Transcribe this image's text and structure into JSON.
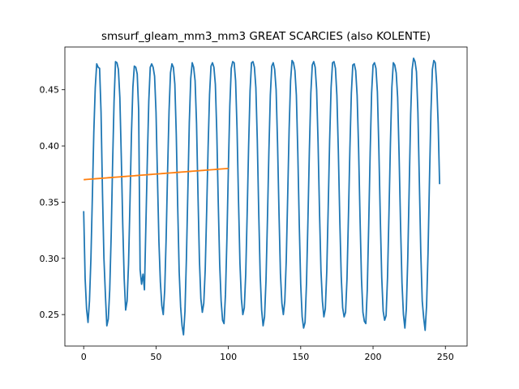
{
  "chart_data": {
    "type": "line",
    "title": "smsurf_gleam_mm3_mm3 GREAT SCARCIES (also KOLENTE)",
    "xlabel": "",
    "ylabel": "",
    "xlim": [
      -13,
      265
    ],
    "ylim": [
      0.222,
      0.488
    ],
    "grid": false,
    "xticks": [
      0,
      50,
      100,
      150,
      200,
      250
    ],
    "yticks": [
      0.25,
      0.3,
      0.35,
      0.4,
      0.45
    ],
    "ytick_labels": [
      "0.25",
      "0.30",
      "0.35",
      "0.40",
      "0.45"
    ],
    "series": [
      {
        "color": "#1f77b4",
        "values": [
          0.342,
          0.282,
          0.255,
          0.243,
          0.262,
          0.3,
          0.355,
          0.412,
          0.452,
          0.473,
          0.47,
          0.469,
          0.43,
          0.358,
          0.3,
          0.268,
          0.24,
          0.246,
          0.272,
          0.32,
          0.385,
          0.44,
          0.475,
          0.474,
          0.468,
          0.443,
          0.39,
          0.33,
          0.282,
          0.254,
          0.262,
          0.295,
          0.35,
          0.41,
          0.452,
          0.471,
          0.47,
          0.464,
          0.432,
          0.29,
          0.277,
          0.286,
          0.272,
          0.33,
          0.388,
          0.44,
          0.47,
          0.473,
          0.47,
          0.462,
          0.43,
          0.371,
          0.315,
          0.279,
          0.258,
          0.25,
          0.272,
          0.318,
          0.378,
          0.431,
          0.465,
          0.473,
          0.47,
          0.455,
          0.41,
          0.345,
          0.288,
          0.257,
          0.24,
          0.232,
          0.253,
          0.3,
          0.36,
          0.421,
          0.46,
          0.474,
          0.47,
          0.458,
          0.42,
          0.357,
          0.298,
          0.264,
          0.252,
          0.26,
          0.29,
          0.342,
          0.399,
          0.446,
          0.471,
          0.474,
          0.47,
          0.455,
          0.412,
          0.35,
          0.295,
          0.262,
          0.245,
          0.242,
          0.268,
          0.318,
          0.38,
          0.436,
          0.469,
          0.475,
          0.474,
          0.458,
          0.415,
          0.352,
          0.296,
          0.264,
          0.25,
          0.256,
          0.286,
          0.34,
          0.4,
          0.449,
          0.474,
          0.475,
          0.47,
          0.452,
          0.405,
          0.34,
          0.285,
          0.254,
          0.24,
          0.248,
          0.28,
          0.334,
          0.395,
          0.445,
          0.471,
          0.474,
          0.468,
          0.45,
          0.402,
          0.34,
          0.286,
          0.26,
          0.25,
          0.262,
          0.298,
          0.355,
          0.415,
          0.458,
          0.476,
          0.474,
          0.467,
          0.445,
          0.394,
          0.33,
          0.277,
          0.248,
          0.238,
          0.243,
          0.278,
          0.334,
          0.397,
          0.447,
          0.472,
          0.475,
          0.47,
          0.45,
          0.403,
          0.341,
          0.289,
          0.262,
          0.248,
          0.255,
          0.288,
          0.345,
          0.405,
          0.452,
          0.474,
          0.475,
          0.469,
          0.445,
          0.396,
          0.335,
          0.284,
          0.256,
          0.248,
          0.252,
          0.282,
          0.338,
          0.398,
          0.447,
          0.472,
          0.473,
          0.467,
          0.445,
          0.398,
          0.336,
          0.282,
          0.252,
          0.244,
          0.242,
          0.272,
          0.33,
          0.394,
          0.447,
          0.472,
          0.474,
          0.469,
          0.448,
          0.398,
          0.336,
          0.283,
          0.253,
          0.245,
          0.249,
          0.283,
          0.34,
          0.402,
          0.452,
          0.474,
          0.472,
          0.465,
          0.443,
          0.392,
          0.33,
          0.278,
          0.25,
          0.238,
          0.255,
          0.3,
          0.364,
          0.428,
          0.468,
          0.478,
          0.475,
          0.466,
          0.43,
          0.368,
          0.305,
          0.262,
          0.247,
          0.236,
          0.258,
          0.305,
          0.37,
          0.43,
          0.468,
          0.476,
          0.474,
          0.455,
          0.42,
          0.366
        ]
      },
      {
        "color": "#ff7f0e",
        "values": [
          0.37,
          0.3701,
          0.3702,
          0.3703,
          0.3704,
          0.3705,
          0.3706,
          0.3707,
          0.3708,
          0.3709,
          0.371,
          0.3711,
          0.3712,
          0.3713,
          0.3714,
          0.3715,
          0.3716,
          0.3717,
          0.3718,
          0.3719,
          0.372,
          0.3721,
          0.3722,
          0.3723,
          0.3724,
          0.3725,
          0.3726,
          0.3727,
          0.3728,
          0.3729,
          0.373,
          0.3731,
          0.3732,
          0.3733,
          0.3734,
          0.3735,
          0.3736,
          0.3737,
          0.3738,
          0.3739,
          0.374,
          0.3741,
          0.3742,
          0.3743,
          0.3744,
          0.3745,
          0.3746,
          0.3747,
          0.3748,
          0.3749,
          0.375,
          0.3751,
          0.3752,
          0.3753,
          0.3754,
          0.3755,
          0.3756,
          0.3757,
          0.3758,
          0.3759,
          0.376,
          0.3761,
          0.3762,
          0.3763,
          0.3764,
          0.3765,
          0.3766,
          0.3767,
          0.3768,
          0.3769,
          0.377,
          0.3771,
          0.3772,
          0.3773,
          0.3774,
          0.3775,
          0.3776,
          0.3777,
          0.3778,
          0.3779,
          0.378,
          0.3781,
          0.3782,
          0.3783,
          0.3784,
          0.3785,
          0.3786,
          0.3787,
          0.3788,
          0.3789,
          0.379,
          0.3791,
          0.3792,
          0.3793,
          0.3794,
          0.3795,
          0.3796,
          0.3797,
          0.3798,
          0.3799,
          0.38
        ]
      }
    ]
  }
}
